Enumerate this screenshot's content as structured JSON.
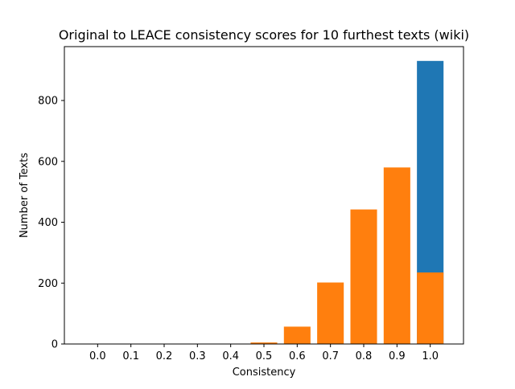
{
  "chart_data": {
    "type": "bar",
    "title": "Original to LEACE consistency scores for 10 furthest texts (wiki)",
    "xlabel": "Consistency",
    "ylabel": "Number of Texts",
    "categories": [
      "0.0",
      "0.1",
      "0.2",
      "0.3",
      "0.4",
      "0.5",
      "0.6",
      "0.7",
      "0.8",
      "0.9",
      "1.0"
    ],
    "x_values": [
      0.0,
      0.1,
      0.2,
      0.3,
      0.4,
      0.5,
      0.6,
      0.7,
      0.8,
      0.9,
      1.0
    ],
    "series": [
      {
        "name": "Original",
        "color": "#1f77b4",
        "values": [
          0,
          0,
          0,
          0,
          0,
          0,
          0,
          0,
          0,
          0,
          930
        ]
      },
      {
        "name": "LEACE",
        "color": "#ff7f0e",
        "values": [
          0,
          0,
          0,
          0,
          0,
          5,
          57,
          202,
          442,
          580,
          235
        ]
      }
    ],
    "y_ticks": [
      0,
      200,
      400,
      600,
      800
    ],
    "xlim": [
      -0.1,
      1.1
    ],
    "ylim": [
      0,
      977
    ],
    "grid": false,
    "legend": "none"
  }
}
